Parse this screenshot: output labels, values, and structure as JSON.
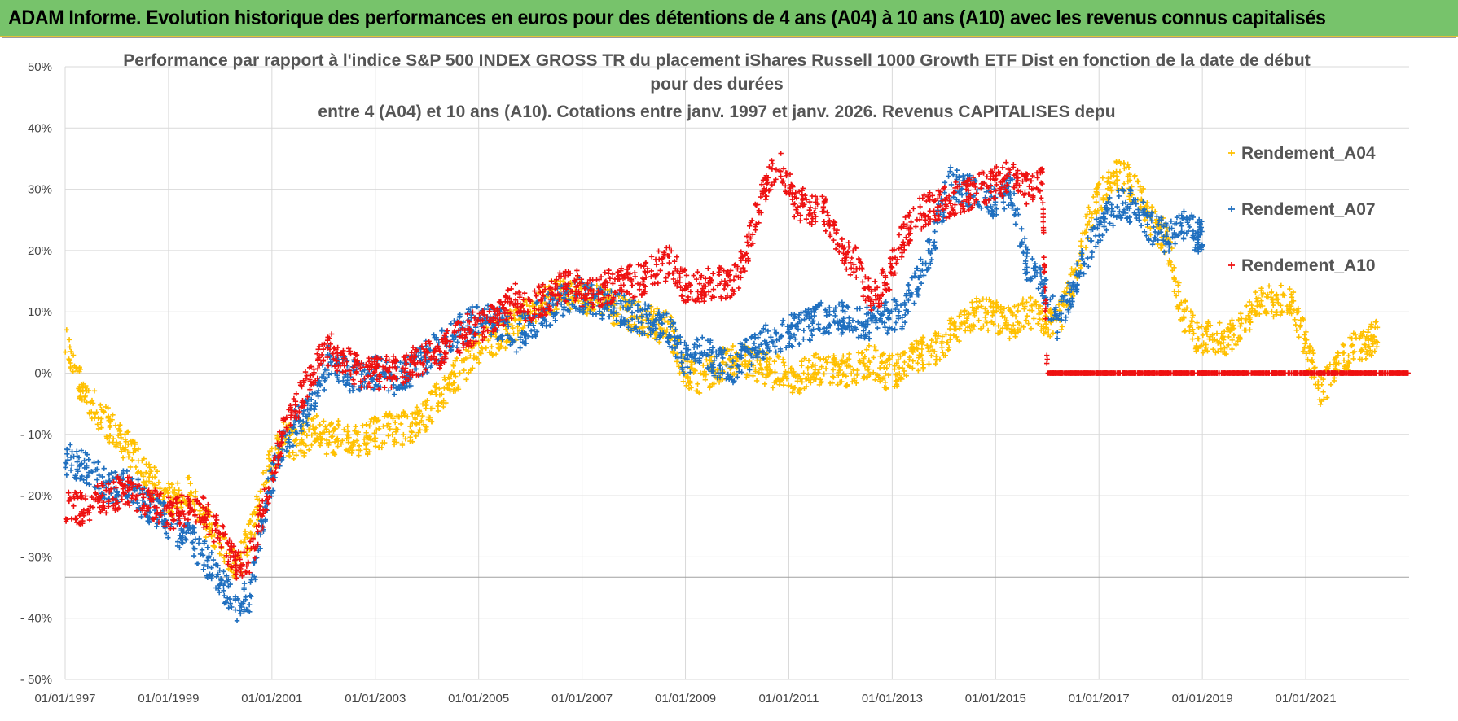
{
  "banner": {
    "title": "ADAM Informe. Evolution historique des performances en euros pour des détentions de 4 ans (A04) à 10 ans (A10) avec les revenus connus capitalisés"
  },
  "colors": {
    "A04": "#ffc000",
    "A07": "#1f6fbf",
    "A10": "#ee1111",
    "banner": "#77c36b",
    "grid": "#d9d9d9"
  },
  "chart_data": {
    "type": "scatter",
    "title_lines": [
      "Performance par rapport à l'indice S&P 500 INDEX GROSS TR  du placement iShares Russell 1000 Growth ETF Dist en fonction de la date de début",
      "pour des durées",
      "entre 4 (A04) et 10 ans (A10).  Cotations entre janv. 1997 et janv. 2026. Revenus CAPITALISES depu"
    ],
    "xlabel": "",
    "ylabel": "",
    "x_range": [
      1997.0,
      2023.0
    ],
    "ylim": [
      -50,
      50
    ],
    "y_ticks": [
      {
        "value": 50,
        "label": "50%"
      },
      {
        "value": 40,
        "label": "40%"
      },
      {
        "value": 30,
        "label": "30%"
      },
      {
        "value": 20,
        "label": "20%"
      },
      {
        "value": 10,
        "label": "10%"
      },
      {
        "value": 0,
        "label": "0%"
      },
      {
        "value": -10,
        "label": "- 10%"
      },
      {
        "value": -20,
        "label": "- 20%"
      },
      {
        "value": -30,
        "label": "- 30%"
      },
      {
        "value": -40,
        "label": "- 40%"
      },
      {
        "value": -50,
        "label": "- 50%"
      }
    ],
    "x_ticks": [
      {
        "value": 1997,
        "label": "01/01/1997"
      },
      {
        "value": 1999,
        "label": "01/01/1999"
      },
      {
        "value": 2001,
        "label": "01/01/2001"
      },
      {
        "value": 2003,
        "label": "01/01/2003"
      },
      {
        "value": 2005,
        "label": "01/01/2005"
      },
      {
        "value": 2007,
        "label": "01/01/2007"
      },
      {
        "value": 2009,
        "label": "01/01/2009"
      },
      {
        "value": 2011,
        "label": "01/01/2011"
      },
      {
        "value": 2013,
        "label": "01/01/2013"
      },
      {
        "value": 2015,
        "label": "01/01/2015"
      },
      {
        "value": 2017,
        "label": "01/01/2017"
      },
      {
        "value": 2019,
        "label": "01/01/2019"
      },
      {
        "value": 2021,
        "label": "01/01/2021"
      }
    ],
    "grid": true,
    "legend_position": "top-right",
    "series": [
      {
        "name": "Rendement_A04",
        "color": "#ffc000",
        "x": [
          1997.0,
          1997.3,
          1997.6,
          1997.9,
          1998.2,
          1998.5,
          1998.8,
          1999.1,
          1999.4,
          1999.7,
          2000.0,
          2000.3,
          2000.6,
          2000.9,
          2001.2,
          2001.5,
          2001.8,
          2002.1,
          2002.4,
          2002.7,
          2003.0,
          2003.3,
          2003.6,
          2003.9,
          2004.2,
          2004.5,
          2004.8,
          2005.1,
          2005.4,
          2005.7,
          2006.0,
          2006.3,
          2006.6,
          2006.9,
          2007.2,
          2007.5,
          2007.8,
          2008.1,
          2008.4,
          2008.7,
          2009.0,
          2009.3,
          2009.6,
          2009.9,
          2010.2,
          2010.5,
          2010.8,
          2011.1,
          2011.4,
          2011.7,
          2012.0,
          2012.3,
          2012.6,
          2012.9,
          2013.2,
          2013.5,
          2013.8,
          2014.1,
          2014.4,
          2014.7,
          2015.0,
          2015.3,
          2015.6,
          2015.9,
          2016.2,
          2016.5,
          2016.8,
          2017.1,
          2017.4,
          2017.7,
          2018.0,
          2018.3,
          2018.6,
          2018.9,
          2019.2,
          2019.5,
          2019.8,
          2020.1,
          2020.4,
          2020.7,
          2021.0,
          2021.3,
          2021.6,
          2021.9,
          2022.2,
          2022.4
        ],
        "values": [
          6,
          -2,
          -6,
          -9,
          -12,
          -15,
          -19,
          -21,
          -19,
          -24,
          -28,
          -32,
          -26,
          -16,
          -10,
          -12,
          -9,
          -11,
          -10,
          -11,
          -10,
          -9,
          -9,
          -8,
          -4,
          -1,
          2,
          5,
          6,
          8,
          10,
          12,
          13,
          13,
          12,
          11,
          10,
          9,
          8,
          7,
          0,
          -1,
          1,
          2,
          2,
          1,
          0,
          -1,
          0,
          1,
          0,
          1,
          2,
          0,
          1,
          3,
          4,
          6,
          8,
          10,
          9,
          8,
          10,
          9,
          8,
          15,
          25,
          30,
          33,
          30,
          25,
          22,
          10,
          6,
          6,
          5,
          9,
          11,
          12,
          12,
          5,
          -3,
          1,
          4,
          5,
          6
        ]
      },
      {
        "name": "Rendement_A07",
        "color": "#1f6fbf",
        "x": [
          1997.0,
          1997.3,
          1997.6,
          1997.9,
          1998.2,
          1998.5,
          1998.8,
          1999.1,
          1999.4,
          1999.7,
          2000.0,
          2000.3,
          2000.6,
          2000.9,
          2001.2,
          2001.5,
          2001.8,
          2002.1,
          2002.4,
          2002.7,
          2003.0,
          2003.3,
          2003.6,
          2003.9,
          2004.2,
          2004.5,
          2004.8,
          2005.1,
          2005.4,
          2005.7,
          2006.0,
          2006.3,
          2006.6,
          2006.9,
          2007.2,
          2007.5,
          2007.8,
          2008.1,
          2008.4,
          2008.7,
          2009.0,
          2009.3,
          2009.6,
          2009.9,
          2010.2,
          2010.5,
          2010.8,
          2011.1,
          2011.4,
          2011.7,
          2012.0,
          2012.3,
          2012.6,
          2012.9,
          2013.2,
          2013.5,
          2013.8,
          2014.1,
          2014.4,
          2014.7,
          2015.0,
          2015.3,
          2015.6,
          2015.9,
          2016.2,
          2016.5,
          2016.8,
          2017.1,
          2017.4,
          2017.7,
          2018.0,
          2018.3,
          2018.6,
          2018.9,
          2019.0
        ],
        "values": [
          -14,
          -15,
          -17,
          -19,
          -18,
          -21,
          -23,
          -25,
          -27,
          -30,
          -34,
          -38,
          -36,
          -20,
          -12,
          -8,
          -5,
          2,
          0,
          -1,
          0,
          -1,
          0,
          2,
          4,
          6,
          8,
          9,
          8,
          6,
          8,
          10,
          12,
          13,
          12,
          11,
          10,
          9,
          8,
          7,
          2,
          4,
          2,
          1,
          3,
          5,
          6,
          7,
          8,
          9,
          9,
          8,
          8,
          9,
          10,
          15,
          22,
          31,
          30,
          29,
          28,
          30,
          18,
          14,
          8,
          14,
          20,
          25,
          28,
          27,
          24,
          22,
          25,
          22,
          23
        ]
      },
      {
        "name": "Rendement_A10",
        "color": "#ee1111",
        "x": [
          1997.0,
          1997.3,
          1997.6,
          1997.9,
          1998.2,
          1998.5,
          1998.8,
          1999.1,
          1999.4,
          1999.7,
          2000.0,
          2000.3,
          2000.6,
          2000.9,
          2001.2,
          2001.5,
          2001.8,
          2002.1,
          2002.4,
          2002.7,
          2003.0,
          2003.3,
          2003.6,
          2003.9,
          2004.2,
          2004.5,
          2004.8,
          2005.1,
          2005.4,
          2005.7,
          2006.0,
          2006.3,
          2006.6,
          2006.9,
          2007.2,
          2007.5,
          2007.8,
          2008.1,
          2008.4,
          2008.7,
          2009.0,
          2009.3,
          2009.6,
          2009.9,
          2010.2,
          2010.5,
          2010.8,
          2011.1,
          2011.4,
          2011.7,
          2012.0,
          2012.3,
          2012.6,
          2012.9,
          2013.2,
          2013.5,
          2013.8,
          2014.1,
          2014.4,
          2014.7,
          2015.0,
          2015.3,
          2015.6,
          2015.9,
          2016.0,
          2016.5,
          2017.0,
          2017.5,
          2018.0,
          2018.5,
          2019.0,
          2019.5,
          2020.0,
          2020.5,
          2021.0,
          2021.5,
          2022.0,
          2022.5,
          2023.0
        ],
        "values": [
          -22,
          -22,
          -21,
          -20,
          -19,
          -21,
          -22,
          -23,
          -22,
          -23,
          -26,
          -31,
          -30,
          -20,
          -10,
          -5,
          0,
          4,
          2,
          0,
          0,
          0,
          1,
          2,
          3,
          5,
          7,
          8,
          10,
          12,
          11,
          12,
          14,
          14,
          13,
          14,
          15,
          15,
          17,
          18,
          14,
          14,
          15,
          14,
          20,
          30,
          35,
          28,
          27,
          26,
          20,
          18,
          12,
          15,
          22,
          26,
          27,
          28,
          29,
          30,
          31,
          32,
          30,
          31,
          0,
          0,
          0,
          0,
          0,
          0,
          0,
          0,
          0,
          0,
          0,
          0,
          0,
          0,
          0
        ]
      }
    ]
  }
}
